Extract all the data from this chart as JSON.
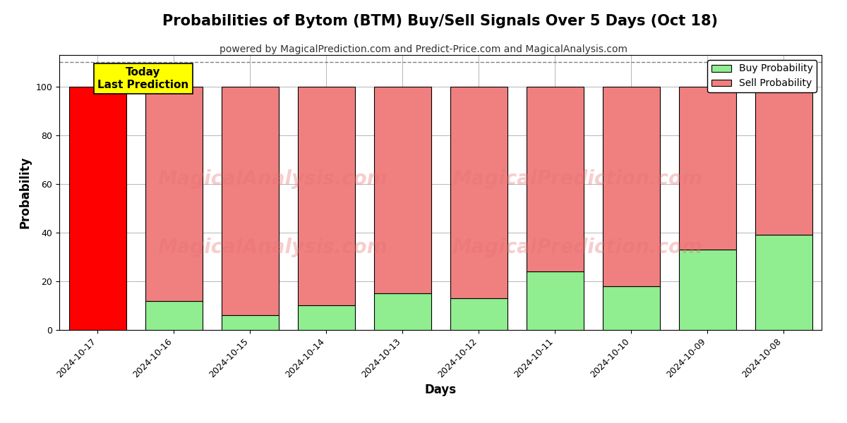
{
  "title": "Probabilities of Bytom (BTM) Buy/Sell Signals Over 5 Days (Oct 18)",
  "subtitle": "powered by MagicalPrediction.com and Predict-Price.com and MagicalAnalysis.com",
  "xlabel": "Days",
  "ylabel": "Probability",
  "categories": [
    "2024-10-17",
    "2024-10-16",
    "2024-10-15",
    "2024-10-14",
    "2024-10-13",
    "2024-10-12",
    "2024-10-11",
    "2024-10-10",
    "2024-10-09",
    "2024-10-08"
  ],
  "buy_values": [
    0,
    12,
    6,
    10,
    15,
    13,
    24,
    18,
    33,
    39
  ],
  "sell_values": [
    100,
    88,
    94,
    90,
    85,
    87,
    76,
    82,
    67,
    61
  ],
  "today_bar_color": "#FF0000",
  "buy_color": "#90EE90",
  "sell_color": "#F08080",
  "today_annotation_bg": "#FFFF00",
  "today_annotation_text": "Today\nLast Prediction",
  "ylim": [
    0,
    113
  ],
  "dashed_line_y": 110,
  "watermark_text1": "MagicalAnalysis.com",
  "watermark_text2": "MagicalPrediction.com",
  "background_color": "#ffffff",
  "grid_color": "#aaaaaa",
  "title_fontsize": 15,
  "subtitle_fontsize": 10,
  "axis_label_fontsize": 12,
  "tick_fontsize": 9,
  "legend_fontsize": 10,
  "bar_width": 0.75
}
